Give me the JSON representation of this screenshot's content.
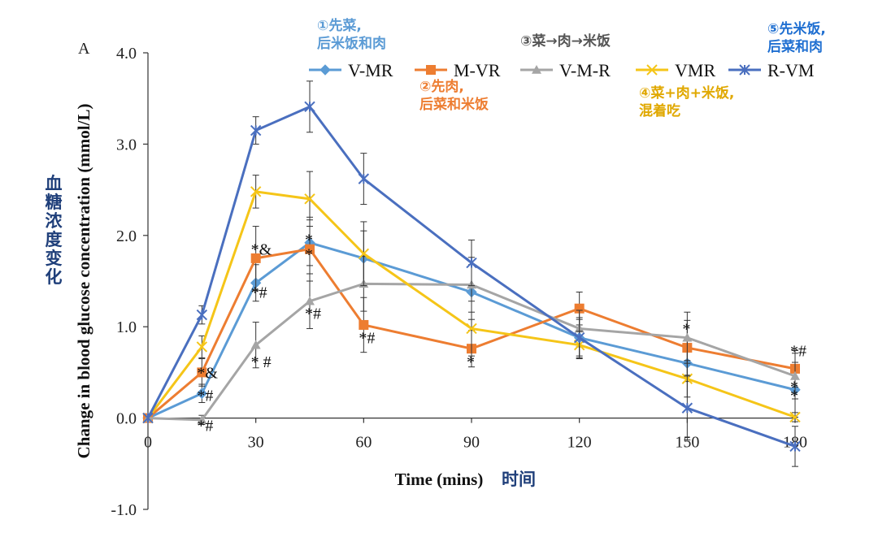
{
  "chart_data": {
    "type": "line",
    "panel_label": "A",
    "xlabel": "Time (mins)",
    "xlabel_cn": "时间",
    "ylabel": "Change in blood glucose concentration (mmol/L)",
    "ylabel_cn": "血糖浓度变化",
    "x": [
      0,
      15,
      30,
      45,
      60,
      90,
      120,
      150,
      180
    ],
    "xlim": [
      0,
      180
    ],
    "ylim": [
      -1.0,
      4.0
    ],
    "xticks": [
      "0",
      "30",
      "60",
      "90",
      "120",
      "150",
      "180"
    ],
    "yticks": [
      "-1.0",
      "0.0",
      "1.0",
      "2.0",
      "3.0",
      "4.0"
    ],
    "grid": false,
    "legend_position": "top",
    "series": [
      {
        "name": "V-MR",
        "color": "#5b9bd5",
        "marker": "diamond",
        "values": [
          0.0,
          0.27,
          1.48,
          1.92,
          1.75,
          1.38,
          0.88,
          0.6,
          0.31
        ],
        "errors": [
          0.0,
          0.1,
          0.2,
          0.25,
          0.3,
          0.3,
          0.22,
          0.2,
          0.3
        ]
      },
      {
        "name": "M-VR",
        "color": "#ed7d31",
        "marker": "square",
        "values": [
          0.0,
          0.5,
          1.75,
          1.85,
          1.02,
          0.76,
          1.2,
          0.77,
          0.54
        ],
        "errors": [
          0.0,
          0.15,
          0.35,
          0.35,
          0.3,
          0.2,
          0.18,
          0.3,
          0.2
        ]
      },
      {
        "name": "V-M-R",
        "color": "#a5a5a5",
        "marker": "triangle",
        "values": [
          0.0,
          -0.02,
          0.8,
          1.28,
          1.47,
          1.46,
          0.98,
          0.88,
          0.46
        ],
        "errors": [
          0.0,
          0.05,
          0.25,
          0.3,
          0.3,
          0.3,
          0.2,
          0.28,
          0.25
        ]
      },
      {
        "name": "VMR",
        "color": "#f5c518",
        "marker": "x",
        "values": [
          0.0,
          0.78,
          2.48,
          2.4,
          1.8,
          0.98,
          0.8,
          0.43,
          0.01
        ],
        "errors": [
          0.0,
          0.12,
          0.18,
          0.3,
          0.35,
          0.3,
          0.15,
          0.2,
          0.05
        ]
      },
      {
        "name": "R-VM",
        "color": "#4a6fbf",
        "marker": "star",
        "values": [
          0.0,
          1.13,
          3.15,
          3.41,
          2.62,
          1.7,
          0.88,
          0.11,
          -0.31
        ],
        "errors": [
          0.0,
          0.1,
          0.15,
          0.28,
          0.28,
          0.25,
          0.2,
          0.35,
          0.22
        ]
      }
    ],
    "significance_marks": [
      {
        "x": 15,
        "y": 0.5,
        "text": "*&"
      },
      {
        "x": 15,
        "y": 0.25,
        "text": "*#"
      },
      {
        "x": 15,
        "y": -0.08,
        "text": "*#"
      },
      {
        "x": 30,
        "y": 1.85,
        "text": "*&"
      },
      {
        "x": 30,
        "y": 1.38,
        "text": "*#"
      },
      {
        "x": 30,
        "y": 0.62,
        "text": "* #"
      },
      {
        "x": 45,
        "y": 1.96,
        "text": "*"
      },
      {
        "x": 45,
        "y": 1.8,
        "text": "*"
      },
      {
        "x": 45,
        "y": 1.15,
        "text": "*#"
      },
      {
        "x": 60,
        "y": 0.88,
        "text": "*#"
      },
      {
        "x": 90,
        "y": 0.62,
        "text": "*"
      },
      {
        "x": 150,
        "y": 0.98,
        "text": "*"
      },
      {
        "x": 180,
        "y": 0.74,
        "text": "*#"
      },
      {
        "x": 180,
        "y": 0.35,
        "text": "*"
      },
      {
        "x": 180,
        "y": 0.25,
        "text": "*"
      }
    ],
    "annotations": [
      {
        "id": "a1",
        "lines": [
          "①先菜,",
          "后米饭和肉"
        ],
        "color": "#5b9bd5"
      },
      {
        "id": "a2",
        "lines": [
          "②先肉,",
          "后菜和米饭"
        ],
        "color": "#ed7d31"
      },
      {
        "id": "a3",
        "lines": [
          "③菜→肉→米饭"
        ],
        "color": "#555555"
      },
      {
        "id": "a4",
        "lines": [
          "④菜+肉+米饭,",
          "混着吃"
        ],
        "color": "#e0a800"
      },
      {
        "id": "a5",
        "lines": [
          "⑤先米饭,",
          "后菜和肉"
        ],
        "color": "#1f6fd1"
      }
    ]
  }
}
